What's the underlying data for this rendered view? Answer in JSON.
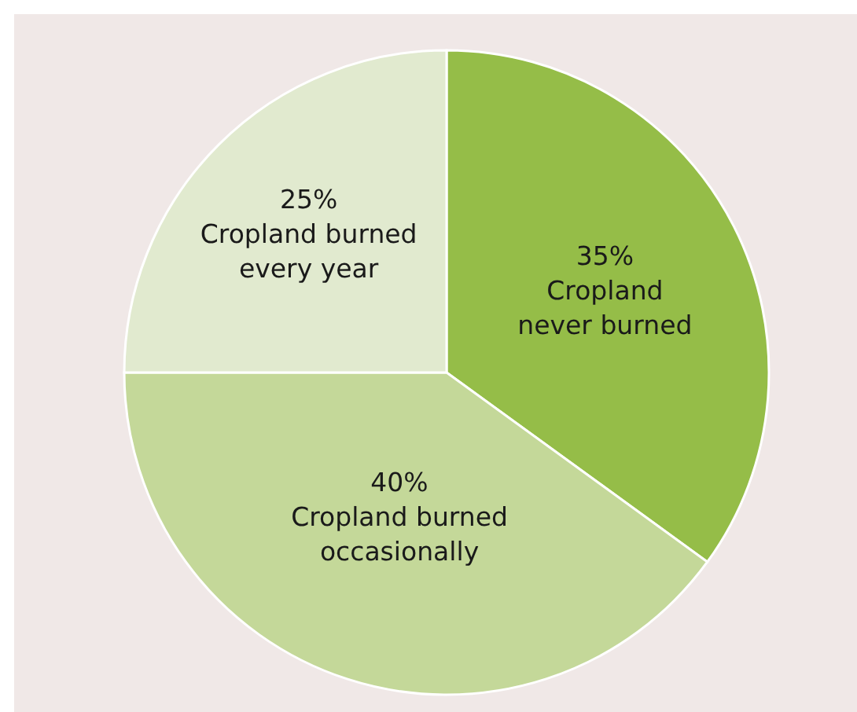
{
  "chart_data": {
    "type": "pie",
    "categories": [
      "Cropland\nnever burned",
      "Cropland burned\noccasionally",
      "Cropland burned\nevery year"
    ],
    "values": [
      35,
      40,
      25
    ],
    "value_labels": [
      "35%",
      "40%",
      "25%"
    ],
    "colors": [
      "#95bd48",
      "#c4d899",
      "#e1eacf"
    ]
  }
}
